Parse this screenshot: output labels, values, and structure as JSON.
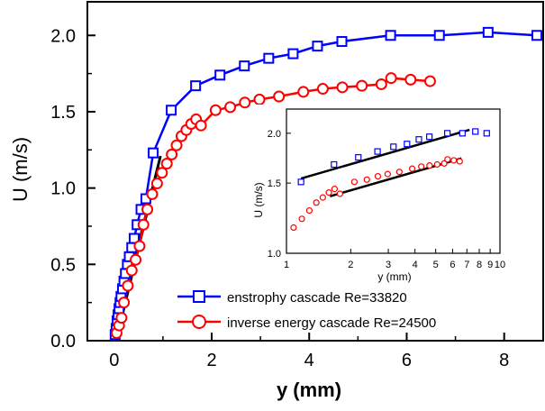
{
  "chart_data": [
    {
      "type": "line",
      "xlabel": "y (mm)",
      "ylabel": "U (m/s)",
      "xlim": [
        -0.55,
        8.8
      ],
      "ylim": [
        0,
        2.22
      ],
      "xticks": [
        "0",
        "2",
        "4",
        "6",
        "8"
      ],
      "yticks": [
        "0.0",
        "0.5",
        "1.0",
        "1.5",
        "2.0"
      ],
      "grid": false,
      "legend_position": "bottom-right",
      "series": [
        {
          "name": "enstrophy cascade Re=33820",
          "color": "#0000ff",
          "marker": "square",
          "x": [
            0.02,
            0.04,
            0.06,
            0.08,
            0.1,
            0.12,
            0.14,
            0.17,
            0.2,
            0.23,
            0.27,
            0.31,
            0.36,
            0.41,
            0.47,
            0.55,
            0.65,
            0.8,
            1.17,
            1.67,
            2.17,
            2.67,
            3.17,
            3.67,
            4.17,
            4.67,
            5.67,
            6.67,
            7.67,
            8.67
          ],
          "y": [
            0.04,
            0.08,
            0.13,
            0.17,
            0.21,
            0.25,
            0.29,
            0.34,
            0.39,
            0.44,
            0.5,
            0.55,
            0.61,
            0.67,
            0.76,
            0.86,
            0.93,
            1.23,
            1.51,
            1.67,
            1.74,
            1.8,
            1.85,
            1.88,
            1.93,
            1.96,
            2.0,
            2.0,
            2.02,
            2.0
          ]
        },
        {
          "name": "inverse energy cascade Re=24500",
          "color": "#ff0000",
          "marker": "circle",
          "x": [
            0.05,
            0.1,
            0.15,
            0.2,
            0.28,
            0.36,
            0.44,
            0.52,
            0.6,
            0.68,
            0.78,
            0.88,
            0.98,
            1.08,
            1.18,
            1.28,
            1.38,
            1.48,
            1.58,
            1.68,
            1.78,
            2.08,
            2.38,
            2.68,
            2.98,
            3.38,
            3.88,
            4.28,
            4.68,
            5.08,
            5.48,
            5.68,
            6.08,
            6.48
          ],
          "y": [
            0.05,
            0.1,
            0.15,
            0.25,
            0.36,
            0.46,
            0.53,
            0.62,
            0.76,
            0.86,
            0.96,
            1.03,
            1.1,
            1.16,
            1.22,
            1.28,
            1.34,
            1.38,
            1.42,
            1.45,
            1.41,
            1.51,
            1.53,
            1.56,
            1.58,
            1.6,
            1.63,
            1.65,
            1.66,
            1.67,
            1.68,
            1.72,
            1.71,
            1.7
          ]
        }
      ],
      "fit_lines": [
        {
          "color": "#000000",
          "x": [
            0.01,
            0.95
          ],
          "y": [
            0.0,
            1.21
          ]
        },
        {
          "color": "#000000",
          "x": [
            0.04,
            0.9
          ],
          "y": [
            0.0,
            1.14
          ]
        }
      ]
    },
    {
      "type": "scatter",
      "xlabel": "y (mm)",
      "ylabel": "U (m/s)",
      "xscale": "log",
      "yscale": "log",
      "xlim": [
        1,
        10
      ],
      "ylim": [
        1.0,
        2.3
      ],
      "xticks": [
        {
          "value": 1,
          "label": "1"
        },
        {
          "value": 2,
          "label": "2"
        },
        {
          "value": 3,
          "label": "3"
        },
        {
          "value": 4,
          "label": "4"
        },
        {
          "value": 5,
          "label": "5"
        },
        {
          "value": 6,
          "label": "6"
        },
        {
          "value": 7,
          "label": "7"
        },
        {
          "value": 8,
          "label": "8"
        },
        {
          "value": 9,
          "label": "9"
        },
        {
          "value": 10,
          "label": "10"
        }
      ],
      "yticks": [
        {
          "value": 1.0,
          "label": "1.0"
        },
        {
          "value": 1.5,
          "label": "1.5"
        },
        {
          "value": 2.0,
          "label": "2.0"
        }
      ],
      "legend_position": "none",
      "series": [
        {
          "color": "#0000ff",
          "marker": "square",
          "x": [
            1.17,
            1.67,
            2.17,
            2.67,
            3.17,
            3.67,
            4.17,
            4.67,
            5.67,
            6.67,
            7.67,
            8.67
          ],
          "y": [
            1.51,
            1.67,
            1.74,
            1.8,
            1.85,
            1.88,
            1.93,
            1.96,
            2.0,
            2.0,
            2.02,
            2.0
          ]
        },
        {
          "color": "#ff0000",
          "marker": "circle",
          "x": [
            1.08,
            1.18,
            1.28,
            1.38,
            1.48,
            1.58,
            1.68,
            1.78,
            2.08,
            2.38,
            2.68,
            2.98,
            3.38,
            3.88,
            4.28,
            4.68,
            5.08,
            5.48,
            5.68,
            6.08,
            6.48
          ],
          "y": [
            1.16,
            1.22,
            1.28,
            1.34,
            1.38,
            1.42,
            1.45,
            1.41,
            1.51,
            1.53,
            1.56,
            1.58,
            1.6,
            1.63,
            1.65,
            1.66,
            1.67,
            1.68,
            1.72,
            1.71,
            1.7
          ]
        }
      ],
      "fit_lines": [
        {
          "color": "#000000",
          "x": [
            1.17,
            7.2
          ],
          "y": [
            1.54,
            2.04
          ]
        },
        {
          "color": "#000000",
          "x": [
            1.6,
            6.6
          ],
          "y": [
            1.39,
            1.73
          ]
        }
      ]
    }
  ]
}
